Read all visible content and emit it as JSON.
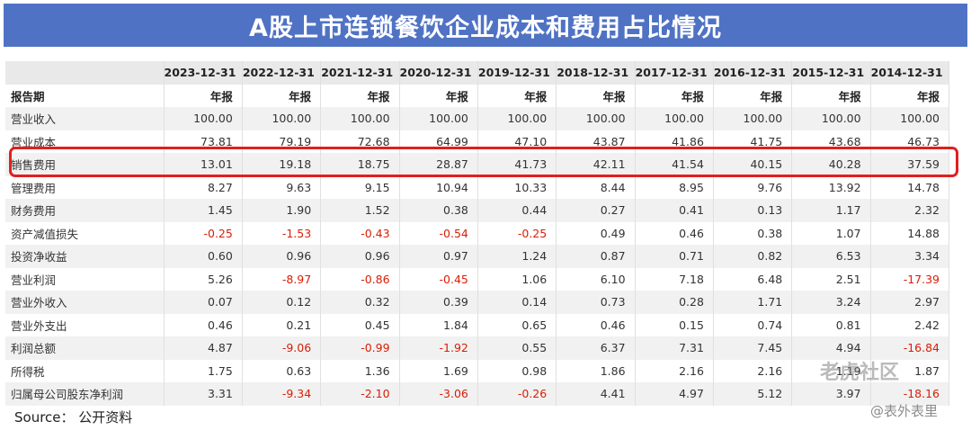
{
  "title": "A股上市连锁餐饮企业成本和费用占比情况",
  "columns": [
    "2023-12-31",
    "2022-12-31",
    "2021-12-31",
    "2020-12-31",
    "2019-12-31",
    "2018-12-31",
    "2017-12-31",
    "2016-12-31",
    "2015-12-31",
    "2014-12-31"
  ],
  "sub_row": {
    "label": "报告期",
    "values": [
      "年报",
      "年报",
      "年报",
      "年报",
      "年报",
      "年报",
      "年报",
      "年报",
      "年报",
      "年报"
    ]
  },
  "rows": [
    {
      "label": "营业收入",
      "values": [
        "100.00",
        "100.00",
        "100.00",
        "100.00",
        "100.00",
        "100.00",
        "100.00",
        "100.00",
        "100.00",
        "100.00"
      ]
    },
    {
      "label": "营业成本",
      "values": [
        "73.81",
        "79.19",
        "72.68",
        "64.99",
        "47.10",
        "43.87",
        "41.86",
        "41.75",
        "43.68",
        "46.73"
      ]
    },
    {
      "label": "销售费用",
      "values": [
        "13.01",
        "19.18",
        "18.75",
        "28.87",
        "41.73",
        "42.11",
        "41.54",
        "40.15",
        "40.28",
        "37.59"
      ]
    },
    {
      "label": "管理费用",
      "values": [
        "8.27",
        "9.63",
        "9.15",
        "10.94",
        "10.33",
        "8.44",
        "8.95",
        "9.76",
        "13.92",
        "14.78"
      ]
    },
    {
      "label": "财务费用",
      "values": [
        "1.45",
        "1.90",
        "1.52",
        "0.38",
        "0.44",
        "0.27",
        "0.41",
        "0.13",
        "1.17",
        "2.32"
      ]
    },
    {
      "label": "资产减值损失",
      "values": [
        "-0.25",
        "-1.53",
        "-0.43",
        "-0.54",
        "-0.25",
        "0.49",
        "0.46",
        "0.38",
        "1.07",
        "14.88"
      ]
    },
    {
      "label": "投资净收益",
      "values": [
        "0.60",
        "0.96",
        "0.96",
        "0.97",
        "1.24",
        "0.87",
        "0.71",
        "0.82",
        "6.53",
        "3.34"
      ]
    },
    {
      "label": "营业利润",
      "values": [
        "5.26",
        "-8.97",
        "-0.86",
        "-0.45",
        "1.06",
        "6.10",
        "7.18",
        "6.48",
        "2.51",
        "-17.39"
      ]
    },
    {
      "label": "营业外收入",
      "values": [
        "0.07",
        "0.12",
        "0.32",
        "0.39",
        "0.14",
        "0.73",
        "0.28",
        "1.71",
        "3.24",
        "2.97"
      ]
    },
    {
      "label": "营业外支出",
      "values": [
        "0.46",
        "0.21",
        "0.45",
        "1.84",
        "0.65",
        "0.46",
        "0.15",
        "0.74",
        "0.81",
        "2.42"
      ]
    },
    {
      "label": "利润总额",
      "values": [
        "4.87",
        "-9.06",
        "-0.99",
        "-1.92",
        "0.55",
        "6.37",
        "7.31",
        "7.45",
        "4.94",
        "-16.84"
      ]
    },
    {
      "label": "所得税",
      "values": [
        "1.75",
        "0.63",
        "1.36",
        "1.69",
        "0.98",
        "1.86",
        "2.16",
        "2.16",
        "1.19",
        "1.87"
      ]
    },
    {
      "label": "归属母公司股东净利润",
      "values": [
        "3.31",
        "-9.34",
        "-2.10",
        "-3.06",
        "-0.26",
        "4.41",
        "4.97",
        "5.12",
        "3.97",
        "-18.16"
      ]
    }
  ],
  "highlight_row": "销售费用",
  "colors": {
    "banner": "#4f72c4",
    "negative": "#d81e06",
    "highlight": "#e02020"
  },
  "source": "Source：  公开资料",
  "watermark": "老虎社区",
  "watermark_sub": "@表外表里"
}
